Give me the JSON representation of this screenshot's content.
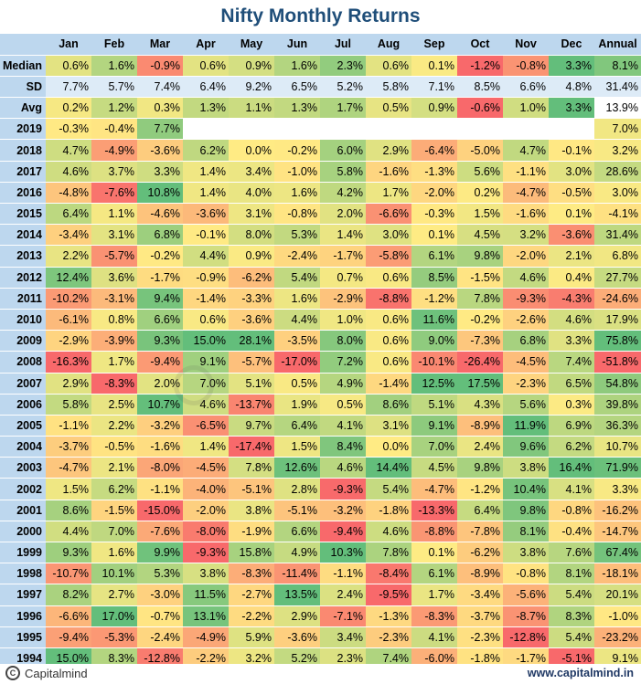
{
  "title": "Nifty Monthly Returns",
  "columns": [
    "Jan",
    "Feb",
    "Mar",
    "Apr",
    "May",
    "Jun",
    "Jul",
    "Aug",
    "Sep",
    "Oct",
    "Nov",
    "Dec",
    "Annual"
  ],
  "footer": {
    "logo_text": "Capitalmind",
    "website": "www.capitalmind.in"
  },
  "watermark": "Capitalmind",
  "colors": {
    "header_bg": "#bdd7ee",
    "sd_row_bg": "#ddebf7",
    "title_color": "#1f4e79",
    "scale_low": "#f8696b",
    "scale_mid": "#ffeb84",
    "scale_high": "#63be7b"
  },
  "chart_data": {
    "type": "table",
    "title": "Nifty Monthly Returns",
    "unit": "%",
    "columns": [
      "Jan",
      "Feb",
      "Mar",
      "Apr",
      "May",
      "Jun",
      "Jul",
      "Aug",
      "Sep",
      "Oct",
      "Nov",
      "Dec",
      "Annual"
    ],
    "summary_rows": [
      {
        "label": "Median",
        "values": [
          0.6,
          1.6,
          -0.9,
          0.6,
          0.9,
          1.6,
          2.3,
          0.6,
          0.1,
          -1.2,
          -0.8,
          3.3,
          8.1
        ]
      },
      {
        "label": "SD",
        "values": [
          7.7,
          5.7,
          7.4,
          6.4,
          9.2,
          6.5,
          5.2,
          5.8,
          7.1,
          8.5,
          6.6,
          4.8,
          31.4
        ]
      },
      {
        "label": "Avg",
        "values": [
          0.2,
          1.2,
          0.3,
          1.3,
          1.1,
          1.3,
          1.7,
          0.5,
          0.9,
          -0.6,
          1.0,
          3.3,
          13.9
        ]
      }
    ],
    "rows": [
      {
        "label": "2019",
        "values": [
          -0.3,
          -0.4,
          7.7,
          null,
          null,
          null,
          null,
          null,
          null,
          null,
          null,
          null,
          7.0
        ]
      },
      {
        "label": "2018",
        "values": [
          4.7,
          -4.9,
          -3.6,
          6.2,
          0.0,
          -0.2,
          6.0,
          2.9,
          -6.4,
          -5.0,
          4.7,
          -0.1,
          3.2
        ]
      },
      {
        "label": "2017",
        "values": [
          4.6,
          3.7,
          3.3,
          1.4,
          3.4,
          -1.0,
          5.8,
          -1.6,
          -1.3,
          5.6,
          -1.1,
          3.0,
          28.6
        ]
      },
      {
        "label": "2016",
        "values": [
          -4.8,
          -7.6,
          10.8,
          1.4,
          4.0,
          1.6,
          4.2,
          1.7,
          -2.0,
          0.2,
          -4.7,
          -0.5,
          3.0
        ]
      },
      {
        "label": "2015",
        "values": [
          6.4,
          1.1,
          -4.6,
          -3.6,
          3.1,
          -0.8,
          2.0,
          -6.6,
          -0.3,
          1.5,
          -1.6,
          0.1,
          -4.1
        ]
      },
      {
        "label": "2014",
        "values": [
          -3.4,
          3.1,
          6.8,
          -0.1,
          8.0,
          5.3,
          1.4,
          3.0,
          0.1,
          4.5,
          3.2,
          -3.6,
          31.4
        ]
      },
      {
        "label": "2013",
        "values": [
          2.2,
          -5.7,
          -0.2,
          4.4,
          0.9,
          -2.4,
          -1.7,
          -5.8,
          6.1,
          9.8,
          -2.0,
          2.1,
          6.8
        ]
      },
      {
        "label": "2012",
        "values": [
          12.4,
          3.6,
          -1.7,
          -0.9,
          -6.2,
          5.4,
          0.7,
          0.6,
          8.5,
          -1.5,
          4.6,
          0.4,
          27.7
        ]
      },
      {
        "label": "2011",
        "values": [
          -10.2,
          -3.1,
          9.4,
          -1.4,
          -3.3,
          1.6,
          -2.9,
          -8.8,
          -1.2,
          7.8,
          -9.3,
          -4.3,
          -24.6
        ]
      },
      {
        "label": "2010",
        "values": [
          -6.1,
          0.8,
          6.6,
          0.6,
          -3.6,
          4.4,
          1.0,
          0.6,
          11.6,
          -0.2,
          -2.6,
          4.6,
          17.9
        ]
      },
      {
        "label": "2009",
        "values": [
          -2.9,
          -3.9,
          9.3,
          15.0,
          28.1,
          -3.5,
          8.0,
          0.6,
          9.0,
          -7.3,
          6.8,
          3.3,
          75.8
        ]
      },
      {
        "label": "2008",
        "values": [
          -16.3,
          1.7,
          -9.4,
          9.1,
          -5.7,
          -17.0,
          7.2,
          0.6,
          -10.1,
          -26.4,
          -4.5,
          7.4,
          -51.8
        ]
      },
      {
        "label": "2007",
        "values": [
          2.9,
          -8.3,
          2.0,
          7.0,
          5.1,
          0.5,
          4.9,
          -1.4,
          12.5,
          17.5,
          -2.3,
          6.5,
          54.8
        ]
      },
      {
        "label": "2006",
        "values": [
          5.8,
          2.5,
          10.7,
          4.6,
          -13.7,
          1.9,
          0.5,
          8.6,
          5.1,
          4.3,
          5.6,
          0.3,
          39.8
        ]
      },
      {
        "label": "2005",
        "values": [
          -1.1,
          2.2,
          -3.2,
          -6.5,
          9.7,
          6.4,
          4.1,
          3.1,
          9.1,
          -8.9,
          11.9,
          6.9,
          36.3
        ]
      },
      {
        "label": "2004",
        "values": [
          -3.7,
          -0.5,
          -1.6,
          1.4,
          -17.4,
          1.5,
          8.4,
          0.0,
          7.0,
          2.4,
          9.6,
          6.2,
          10.7
        ]
      },
      {
        "label": "2003",
        "values": [
          -4.7,
          2.1,
          -8.0,
          -4.5,
          7.8,
          12.6,
          4.6,
          14.4,
          4.5,
          9.8,
          3.8,
          16.4,
          71.9
        ]
      },
      {
        "label": "2002",
        "values": [
          1.5,
          6.2,
          -1.1,
          -4.0,
          -5.1,
          2.8,
          -9.3,
          5.4,
          -4.7,
          -1.2,
          10.4,
          4.1,
          3.3
        ]
      },
      {
        "label": "2001",
        "values": [
          8.6,
          -1.5,
          -15.0,
          -2.0,
          3.8,
          -5.1,
          -3.2,
          -1.8,
          -13.3,
          6.4,
          9.8,
          -0.8,
          -16.2
        ]
      },
      {
        "label": "2000",
        "values": [
          4.4,
          7.0,
          -7.6,
          -8.0,
          -1.9,
          6.6,
          -9.4,
          4.6,
          -8.8,
          -7.8,
          8.1,
          -0.4,
          -14.7
        ]
      },
      {
        "label": "1999",
        "values": [
          9.3,
          1.6,
          9.9,
          -9.3,
          15.8,
          4.9,
          10.3,
          7.8,
          0.1,
          -6.2,
          3.8,
          7.6,
          67.4
        ]
      },
      {
        "label": "1998",
        "values": [
          -10.7,
          10.1,
          5.3,
          3.8,
          -8.3,
          -11.4,
          -1.1,
          -8.4,
          6.1,
          -8.9,
          -0.8,
          8.1,
          -18.1
        ]
      },
      {
        "label": "1997",
        "values": [
          8.2,
          2.7,
          -3.0,
          11.5,
          -2.7,
          13.5,
          2.4,
          -9.5,
          1.7,
          -3.4,
          -5.6,
          5.4,
          20.1
        ]
      },
      {
        "label": "1996",
        "values": [
          -6.6,
          17.0,
          -0.7,
          13.1,
          -2.2,
          2.9,
          -7.1,
          -1.3,
          -8.3,
          -3.7,
          -8.7,
          8.3,
          -1.0
        ]
      },
      {
        "label": "1995",
        "values": [
          -9.4,
          -5.3,
          -2.4,
          -4.9,
          5.9,
          -3.6,
          3.4,
          -2.3,
          4.1,
          -2.3,
          -12.8,
          5.4,
          -23.2
        ]
      },
      {
        "label": "1994",
        "values": [
          15.0,
          8.3,
          -12.8,
          -2.2,
          3.2,
          5.2,
          2.3,
          7.4,
          -6.0,
          -1.8,
          -1.7,
          -5.1,
          9.1
        ]
      }
    ]
  }
}
